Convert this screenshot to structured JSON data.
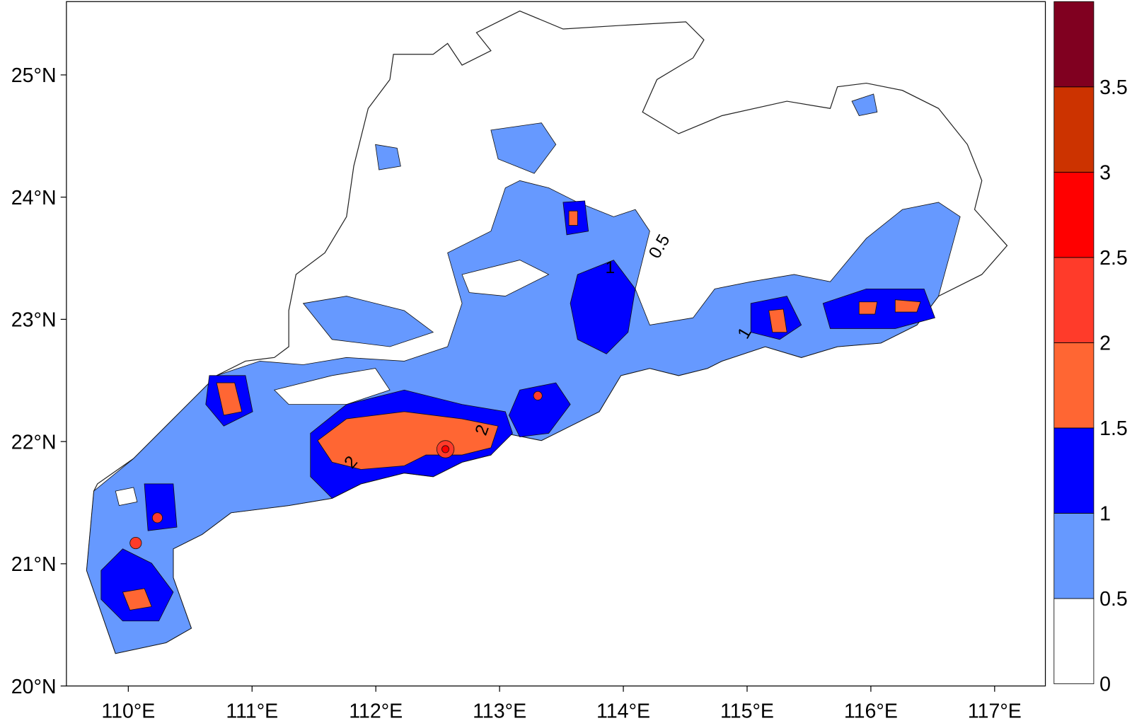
{
  "map": {
    "xlim": [
      109.5,
      117.41
    ],
    "ylim": [
      20,
      25.6
    ],
    "xticks": [
      {
        "value": 110,
        "label": "110°E"
      },
      {
        "value": 111,
        "label": "111°E"
      },
      {
        "value": 112,
        "label": "112°E"
      },
      {
        "value": 113,
        "label": "113°E"
      },
      {
        "value": 114,
        "label": "114°E"
      },
      {
        "value": 115,
        "label": "115°E"
      },
      {
        "value": 116,
        "label": "116°E"
      },
      {
        "value": 117,
        "label": "117°E"
      }
    ],
    "yticks": [
      {
        "value": 20,
        "label": "20°N"
      },
      {
        "value": 21,
        "label": "21°N"
      },
      {
        "value": 22,
        "label": "22°N"
      },
      {
        "value": 23,
        "label": "23°N"
      },
      {
        "value": 24,
        "label": "24°N"
      },
      {
        "value": 25,
        "label": "25°N"
      }
    ],
    "colorbar": {
      "clim": [
        0,
        4
      ],
      "levels": [
        0,
        0.5,
        1,
        1.5,
        2,
        2.5,
        3,
        3.5
      ],
      "colors": [
        "#ffffff",
        "#6699ff",
        "#0000ff",
        "#ff6633",
        "#ff3b2a",
        "#ff0000",
        "#cc3300",
        "#800020"
      ]
    },
    "contour_labels": [
      "0.5",
      "1",
      "2",
      "1",
      "2"
    ]
  }
}
